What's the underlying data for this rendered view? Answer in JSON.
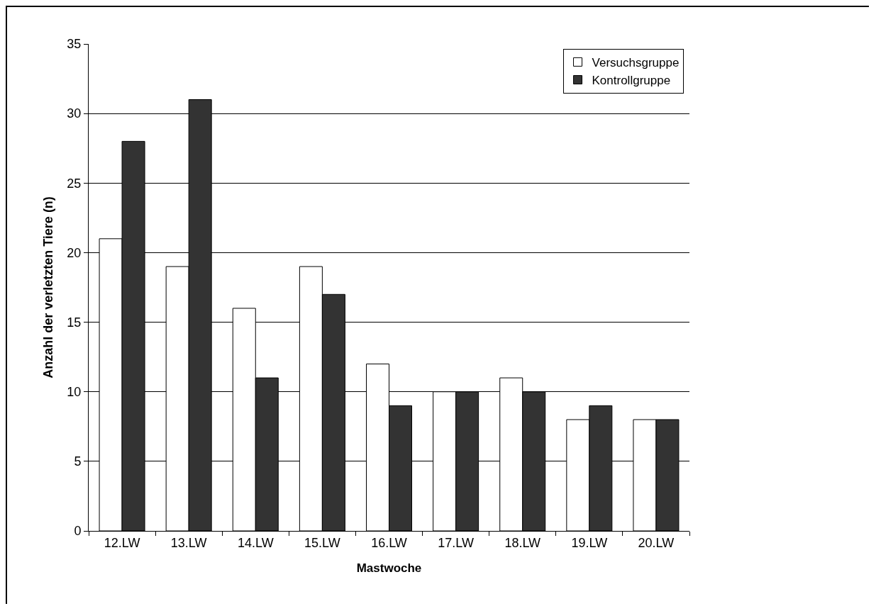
{
  "chart_data": {
    "type": "bar",
    "xlabel": "Mastwoche",
    "ylabel": "Anzahl der verletzten Tiere (n)",
    "categories": [
      "12.LW",
      "13.LW",
      "14.LW",
      "15.LW",
      "16.LW",
      "17.LW",
      "18.LW",
      "19.LW",
      "20.LW"
    ],
    "series": [
      {
        "name": "Versuchsgruppe",
        "color": "#ffffff",
        "values": [
          21,
          19,
          16,
          19,
          12,
          10,
          11,
          8,
          8
        ]
      },
      {
        "name": "Kontrollgruppe",
        "color": "#333333",
        "values": [
          28,
          31,
          11,
          17,
          9,
          10,
          10,
          9,
          8
        ]
      }
    ],
    "ylim": [
      0,
      35
    ],
    "yticks": [
      0,
      5,
      10,
      15,
      20,
      25,
      30,
      35
    ],
    "grid": "y",
    "legend": "top right"
  }
}
